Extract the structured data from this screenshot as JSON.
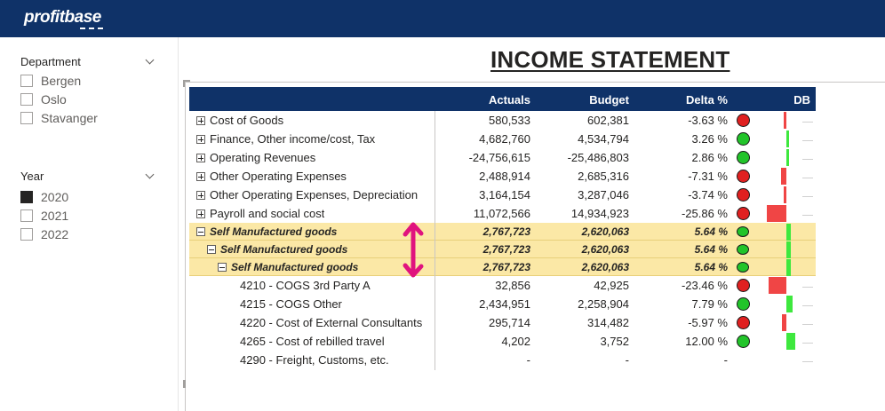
{
  "app": {
    "logo_text": "profitbase"
  },
  "slicers": {
    "department": {
      "label": "Department",
      "items": [
        {
          "label": "Bergen",
          "checked": false
        },
        {
          "label": "Oslo",
          "checked": false
        },
        {
          "label": "Stavanger",
          "checked": false
        }
      ]
    },
    "year": {
      "label": "Year",
      "items": [
        {
          "label": "2020",
          "checked": true
        },
        {
          "label": "2021",
          "checked": false
        },
        {
          "label": "2022",
          "checked": false
        }
      ]
    }
  },
  "report": {
    "title": "INCOME STATEMENT",
    "columns": {
      "actuals": "Actuals",
      "budget": "Budget",
      "delta": "Delta %",
      "db": "DB"
    },
    "rows": [
      {
        "label": "Cost of Goods",
        "actuals": "580,533",
        "budget": "602,381",
        "delta": "-3.63 %",
        "status": "red",
        "expander": "plus",
        "indent": 0,
        "highlight": false,
        "delta_value": -3.63
      },
      {
        "label": "Finance, Other income/cost, Tax",
        "actuals": "4,682,760",
        "budget": "4,534,794",
        "delta": "3.26 %",
        "status": "green",
        "expander": "plus",
        "indent": 0,
        "highlight": false,
        "delta_value": 3.26
      },
      {
        "label": "Operating Revenues",
        "actuals": "-24,756,615",
        "budget": "-25,486,803",
        "delta": "2.86 %",
        "status": "green",
        "expander": "plus",
        "indent": 0,
        "highlight": false,
        "delta_value": 2.86
      },
      {
        "label": "Other Operating Expenses",
        "actuals": "2,488,914",
        "budget": "2,685,316",
        "delta": "-7.31 %",
        "status": "red",
        "expander": "plus",
        "indent": 0,
        "highlight": false,
        "delta_value": -7.31
      },
      {
        "label": "Other Operating Expenses, Depreciation",
        "actuals": "3,164,154",
        "budget": "3,287,046",
        "delta": "-3.74 %",
        "status": "red",
        "expander": "plus",
        "indent": 0,
        "highlight": false,
        "delta_value": -3.74
      },
      {
        "label": "Payroll and social cost",
        "actuals": "11,072,566",
        "budget": "14,934,923",
        "delta": "-25.86 %",
        "status": "red",
        "expander": "plus",
        "indent": 0,
        "highlight": false,
        "delta_value": -25.86
      },
      {
        "label": "Self Manufactured goods",
        "actuals": "2,767,723",
        "budget": "2,620,063",
        "delta": "5.64 %",
        "status": "green",
        "expander": "minus",
        "indent": 0,
        "highlight": true,
        "delta_value": 5.64
      },
      {
        "label": "Self Manufactured goods",
        "actuals": "2,767,723",
        "budget": "2,620,063",
        "delta": "5.64 %",
        "status": "green",
        "expander": "minus",
        "indent": 1,
        "highlight": true,
        "delta_value": 5.64
      },
      {
        "label": "Self Manufactured goods",
        "actuals": "2,767,723",
        "budget": "2,620,063",
        "delta": "5.64 %",
        "status": "green",
        "expander": "minus",
        "indent": 2,
        "highlight": true,
        "delta_value": 5.64
      },
      {
        "label": "4210 - COGS 3rd Party A",
        "actuals": "32,856",
        "budget": "42,925",
        "delta": "-23.46 %",
        "status": "red",
        "expander": "none",
        "indent": 3,
        "highlight": false,
        "delta_value": -23.46
      },
      {
        "label": "4215 - COGS Other",
        "actuals": "2,434,951",
        "budget": "2,258,904",
        "delta": "7.79 %",
        "status": "green",
        "expander": "none",
        "indent": 3,
        "highlight": false,
        "delta_value": 7.79
      },
      {
        "label": "4220 - Cost of External Consultants",
        "actuals": "295,714",
        "budget": "314,482",
        "delta": "-5.97 %",
        "status": "red",
        "expander": "none",
        "indent": 3,
        "highlight": false,
        "delta_value": -5.97
      },
      {
        "label": "4265 - Cost of rebilled travel",
        "actuals": "4,202",
        "budget": "3,752",
        "delta": "12.00 %",
        "status": "green",
        "expander": "none",
        "indent": 3,
        "highlight": false,
        "delta_value": 12.0
      },
      {
        "label": "4290 - Freight, Customs, etc.",
        "actuals": "-",
        "budget": "-",
        "delta": "-",
        "status": "none",
        "expander": "none",
        "indent": 3,
        "highlight": false,
        "delta_value": null
      }
    ]
  },
  "colors": {
    "header": "#0f3268",
    "highlight": "#fbe8a6",
    "red": "#e02020",
    "green": "#22c42a",
    "annotation": "#e0137e"
  },
  "annotation": {
    "icon": "double-headed-arrow-icon"
  }
}
